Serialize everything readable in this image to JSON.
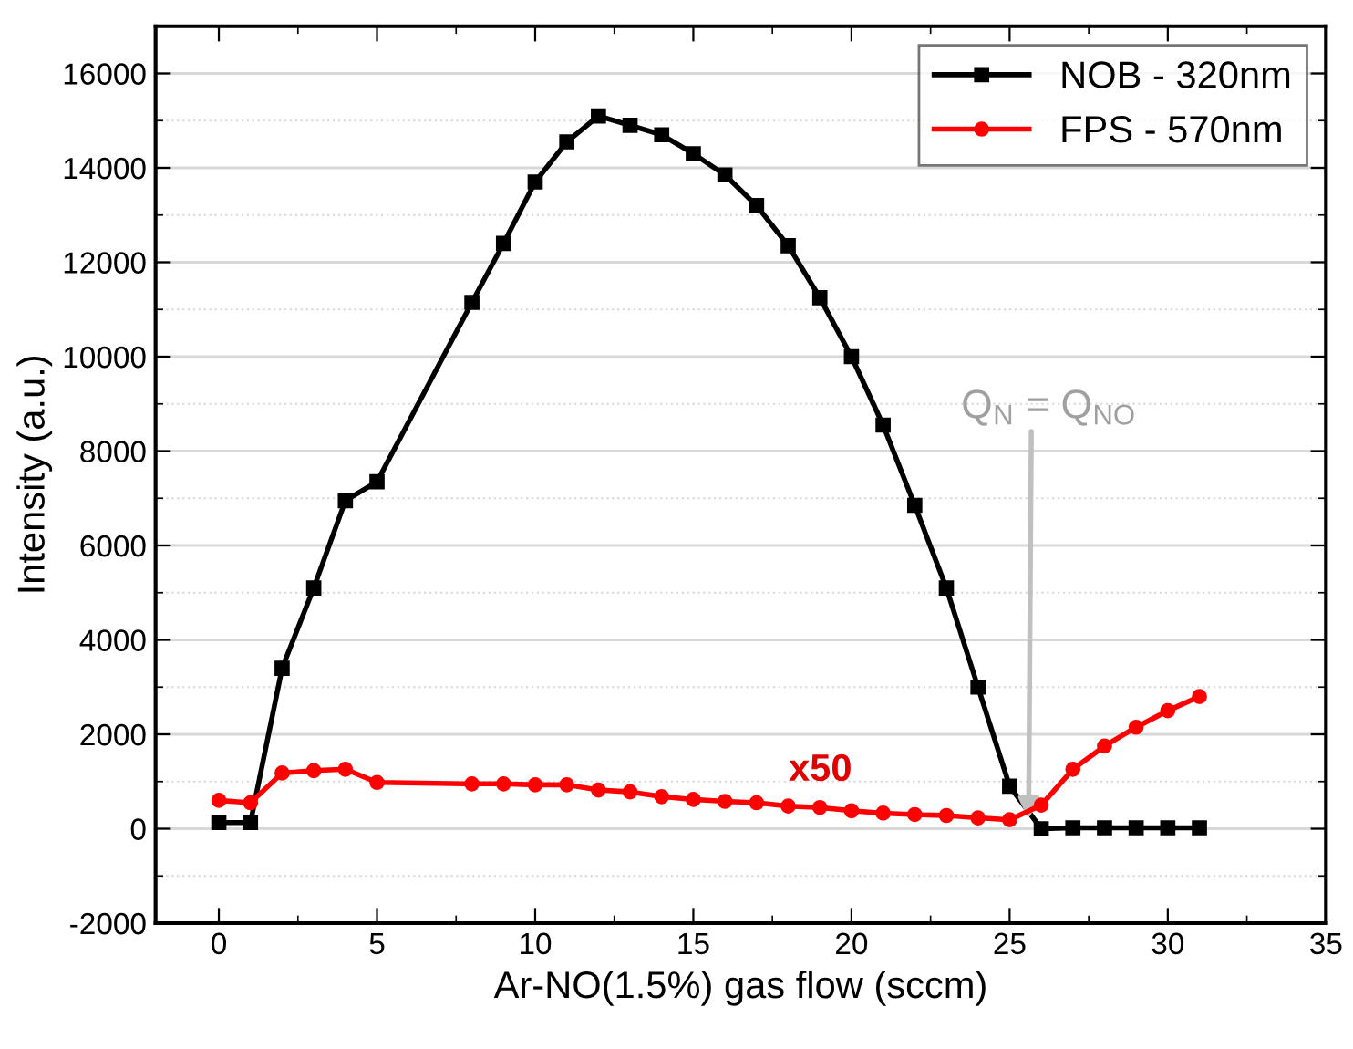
{
  "chart_data": {
    "type": "line",
    "xlabel": "Ar-NO(1.5%) gas flow (sccm)",
    "ylabel": "Intensity (a.u.)",
    "x": [
      0,
      1,
      2,
      3,
      4,
      5,
      8,
      9,
      10,
      11,
      12,
      13,
      14,
      15,
      16,
      17,
      18,
      19,
      20,
      21,
      22,
      23,
      24,
      25,
      26,
      27,
      28,
      29,
      30,
      31
    ],
    "series": [
      {
        "name": "NOB - 320nm",
        "color": "#000000",
        "marker": "square",
        "values": [
          130,
          130,
          3400,
          5100,
          6950,
          7350,
          11150,
          12400,
          13700,
          14550,
          15100,
          14900,
          14700,
          14300,
          13850,
          13200,
          12350,
          11250,
          10000,
          8550,
          6850,
          5100,
          3000,
          900,
          0,
          20,
          20,
          20,
          20,
          20
        ]
      },
      {
        "name": "FPS - 570nm",
        "color": "#ff0000",
        "marker": "circle",
        "values": [
          600,
          550,
          1180,
          1230,
          1260,
          980,
          950,
          950,
          930,
          930,
          820,
          780,
          680,
          620,
          580,
          550,
          480,
          450,
          380,
          330,
          300,
          280,
          230,
          190,
          500,
          1260,
          1750,
          2150,
          2500,
          2800
        ]
      }
    ],
    "xlim": [
      -2,
      35
    ],
    "xticks": [
      0,
      5,
      10,
      15,
      20,
      25,
      30,
      35
    ],
    "ylim": [
      -2000,
      17000
    ],
    "yticks": [
      -2000,
      0,
      2000,
      4000,
      6000,
      8000,
      10000,
      12000,
      14000,
      16000
    ],
    "grid": "y",
    "legend": "top right",
    "annotations": [
      {
        "text": "Q$_{N}$ = Q$_{NO}$",
        "x": 25.6,
        "y": 200
      },
      "x50"
    ]
  }
}
